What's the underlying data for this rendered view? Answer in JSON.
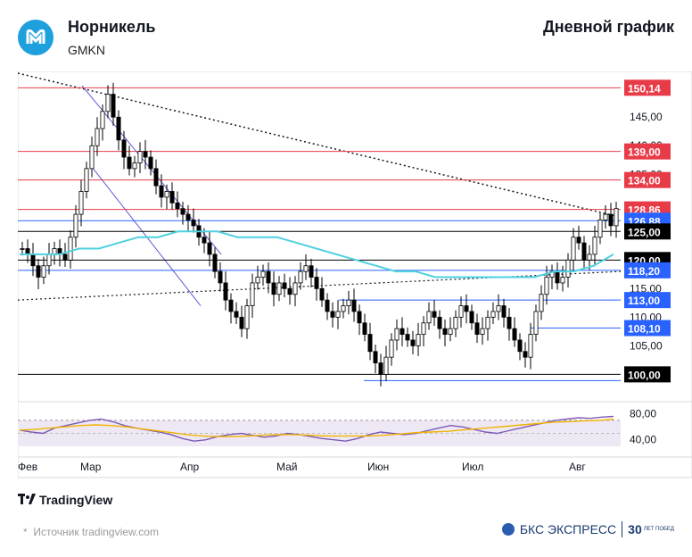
{
  "header": {
    "company": "Норникель",
    "ticker": "GMKN",
    "chart_kind": "Дневной график"
  },
  "footer": {
    "tradingview": "TradingView",
    "source": "Источник tradingview.com",
    "bks_brand": "БКС ЭКСПРЕСС",
    "bks_anniv_number": "30",
    "bks_anniv_text": "ЛЕТ ПОБЕД"
  },
  "colors": {
    "red_level": "#e83b48",
    "blue_level": "#2962ff",
    "black_level": "#000000",
    "ma": "#4fd1de",
    "rsi_line": "#7d5ab5",
    "rsi_signal": "#f0b400",
    "brand_logo": "#1ea0dc"
  },
  "chart_data": {
    "type": "candlestick",
    "x_tick_labels": [
      "Фев",
      "Мар",
      "Апр",
      "Май",
      "Июн",
      "Июл",
      "Авг"
    ],
    "price_axis": {
      "range": [
        96,
        153
      ],
      "tick_labels": [
        "145,00",
        "140,00",
        "135,00",
        "115,00",
        "110,00",
        "105,00"
      ],
      "ticks": [
        145,
        140,
        135,
        115,
        110,
        105
      ]
    },
    "levels": [
      {
        "value": 150.14,
        "label": "150,14",
        "style": "red"
      },
      {
        "value": 139.0,
        "label": "139,00",
        "style": "red"
      },
      {
        "value": 134.0,
        "label": "134,00",
        "style": "red"
      },
      {
        "value": 128.86,
        "label": "128,86",
        "style": "red"
      },
      {
        "value": 126.88,
        "label": "126,88",
        "style": "blue"
      },
      {
        "value": 125.0,
        "label": "125,00",
        "style": "black"
      },
      {
        "value": 120.0,
        "label": "120,00",
        "style": "black"
      },
      {
        "value": 118.2,
        "label": "118,20",
        "style": "blue"
      },
      {
        "value": 113.0,
        "label": "113,00",
        "style": "blue"
      },
      {
        "value": 108.1,
        "label": "108,10",
        "style": "blue"
      },
      {
        "value": 100.0,
        "label": "100,00",
        "style": "black"
      }
    ],
    "close_path": [
      122,
      121,
      119,
      117,
      119,
      121,
      122,
      121,
      120,
      124,
      128,
      132,
      136,
      140,
      143,
      146,
      149,
      145,
      141,
      138,
      136,
      137,
      139,
      138,
      136,
      133,
      131,
      132,
      130,
      129,
      128,
      127,
      126,
      124,
      123,
      121,
      118,
      116,
      113,
      111,
      110,
      108,
      112,
      116,
      117,
      118,
      116,
      114,
      116,
      115,
      114,
      116,
      118,
      119,
      117,
      115,
      113,
      111,
      110,
      111,
      112,
      113,
      111,
      109,
      107,
      104,
      102,
      100,
      103,
      106,
      108,
      107,
      106,
      105,
      107,
      109,
      111,
      110,
      108,
      107,
      108,
      110,
      112,
      111,
      109,
      107,
      108,
      110,
      111,
      112,
      110,
      108,
      106,
      104,
      103,
      107,
      111,
      114,
      117,
      118,
      116,
      117,
      120,
      124,
      123,
      120,
      121,
      124,
      127,
      128,
      126,
      129
    ],
    "ma": [
      121,
      121,
      121,
      122,
      122,
      123,
      124,
      124,
      125,
      125,
      125,
      124,
      124,
      124,
      123,
      122,
      121,
      120,
      119,
      118,
      118,
      117,
      117,
      117,
      117,
      117,
      117,
      118,
      118,
      119,
      121
    ],
    "rsi": {
      "axis_tick_labels": [
        "80,00",
        "40,00"
      ],
      "axis_ticks": [
        80,
        40
      ],
      "range": [
        30,
        85
      ],
      "band": [
        30,
        70
      ],
      "line": [
        55,
        52,
        50,
        58,
        62,
        66,
        70,
        72,
        68,
        62,
        58,
        55,
        52,
        48,
        42,
        38,
        40,
        45,
        48,
        50,
        47,
        44,
        46,
        50,
        48,
        45,
        42,
        40,
        38,
        42,
        48,
        52,
        50,
        48,
        50,
        54,
        58,
        62,
        60,
        56,
        52,
        50,
        54,
        58,
        62,
        66,
        70,
        72,
        74,
        73,
        75,
        76
      ],
      "signal": [
        55,
        56,
        58,
        60,
        62,
        63,
        62,
        60,
        57,
        54,
        51,
        48,
        46,
        45,
        45,
        46,
        47,
        48,
        48,
        47,
        46,
        46,
        46,
        46,
        47,
        49,
        51,
        52,
        53,
        55,
        57,
        59,
        61,
        63,
        65,
        67,
        68,
        69,
        70,
        72
      ]
    }
  }
}
